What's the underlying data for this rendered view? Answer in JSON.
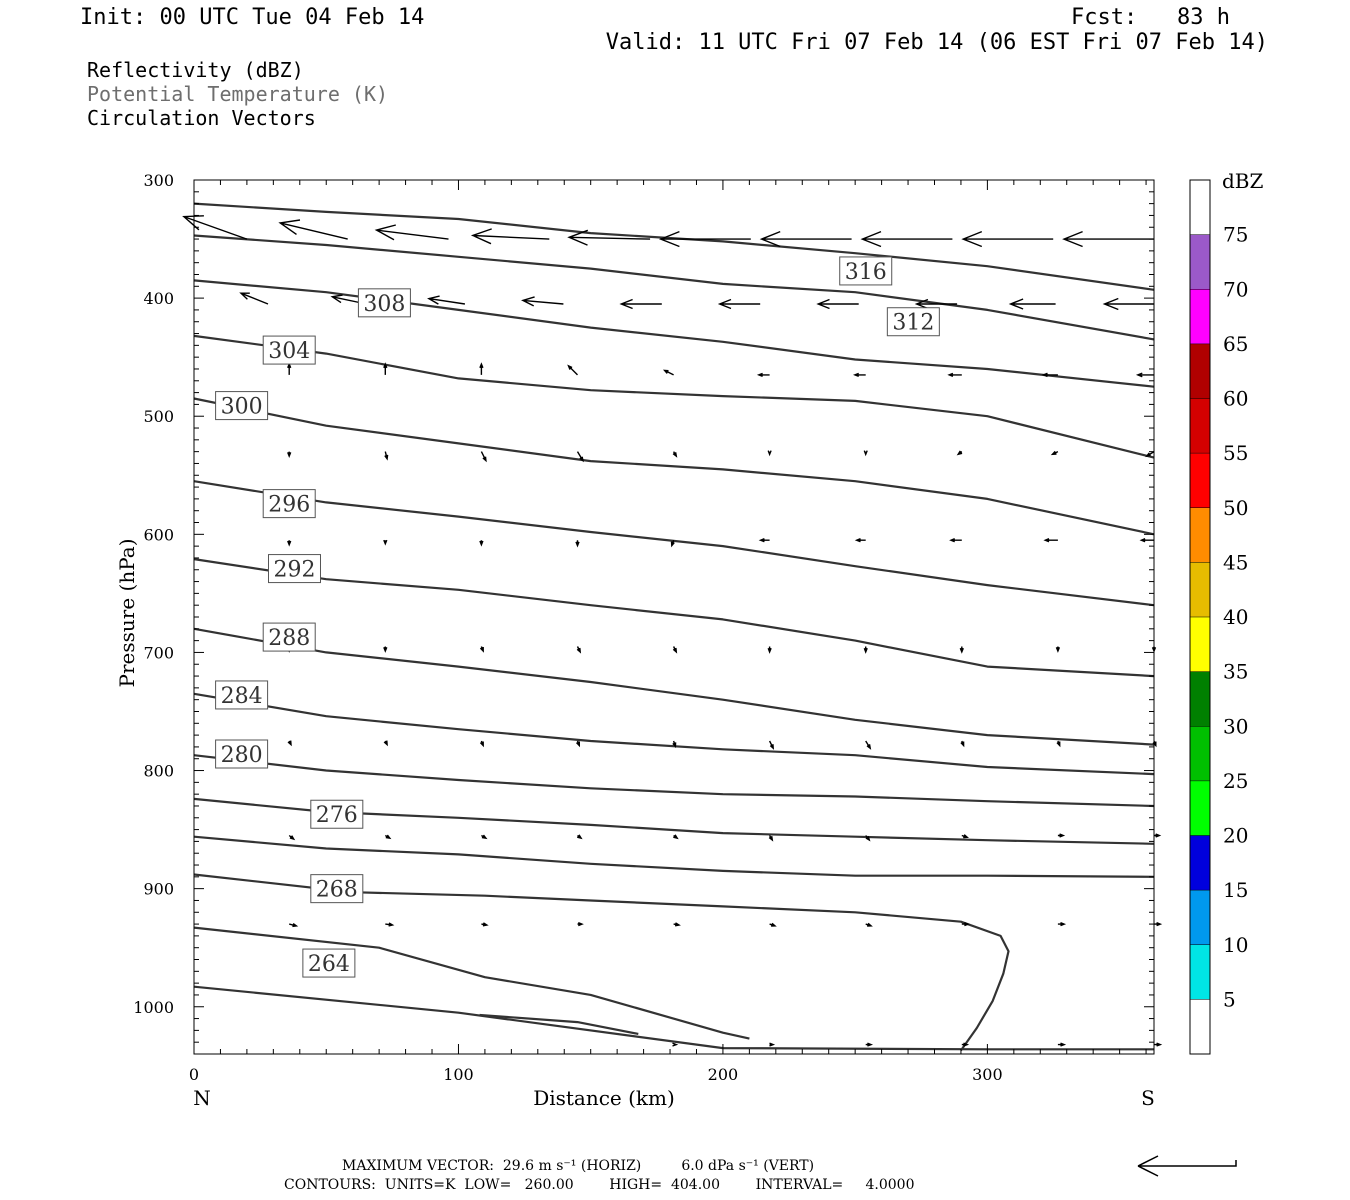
{
  "header": {
    "init": "Init: 00 UTC Tue 04 Feb 14",
    "fcst": "Fcst:   83 h",
    "valid": "Valid: 11 UTC Fri 07 Feb 14 (06 EST Fri 07 Feb 14)"
  },
  "fields": [
    "Reflectivity (dBZ)",
    "Potential Temperature (K)",
    "Circulation Vectors"
  ],
  "colors": {
    "contour": "#333333",
    "axis": "#000000",
    "field_gray": "#6e6e6e"
  },
  "chart_data": {
    "type": "line",
    "xlabel": "Distance (km)",
    "ylabel": "Pressure (hPa)",
    "x_end_labels": [
      "N",
      "S"
    ],
    "xlim": [
      0,
      363
    ],
    "ylim": [
      1040,
      300
    ],
    "x_ticks": [
      0,
      100,
      200,
      300
    ],
    "x_tick_labels": [
      "0",
      "100",
      "200",
      "300"
    ],
    "y_ticks": [
      300,
      400,
      500,
      600,
      700,
      800,
      900,
      1000
    ],
    "y_tick_labels": [
      "300",
      "400",
      "500",
      "600",
      "700",
      "800",
      "900",
      "1000"
    ],
    "series": [
      {
        "label": "264",
        "label_at": [
          51,
          963
        ],
        "x": [
          0,
          70,
          110,
          150,
          200,
          210
        ],
        "y": [
          933,
          950,
          975,
          990,
          1022,
          1027
        ]
      },
      {
        "label": "268",
        "label_at": [
          54,
          900
        ],
        "x": [
          0,
          60,
          110,
          150,
          200,
          250,
          290,
          305,
          308,
          306,
          302,
          296,
          290
        ],
        "y": [
          888,
          903,
          906,
          910,
          915,
          920,
          928,
          940,
          953,
          972,
          995,
          1018,
          1037
        ]
      },
      {
        "label": "",
        "label_at": null,
        "x": [
          0,
          50,
          100,
          150,
          200,
          250,
          300,
          363
        ],
        "y": [
          856,
          866,
          871,
          879,
          885,
          889,
          889,
          890
        ]
      },
      {
        "label": "276",
        "label_at": [
          54,
          837
        ],
        "x": [
          0,
          50,
          100,
          150,
          200,
          250,
          300,
          363
        ],
        "y": [
          824,
          835,
          840,
          846,
          853,
          856,
          859,
          862
        ]
      },
      {
        "label": "280",
        "label_at": [
          18,
          786
        ],
        "x": [
          0,
          50,
          100,
          150,
          200,
          250,
          300,
          363
        ],
        "y": [
          787,
          800,
          808,
          815,
          820,
          822,
          826,
          830
        ]
      },
      {
        "label": "284",
        "label_at": [
          18,
          736
        ],
        "x": [
          0,
          50,
          100,
          150,
          200,
          250,
          300,
          363
        ],
        "y": [
          735,
          754,
          765,
          775,
          782,
          787,
          797,
          803
        ]
      },
      {
        "label": "288",
        "label_at": [
          36,
          687
        ],
        "x": [
          0,
          50,
          100,
          150,
          200,
          250,
          300,
          363
        ],
        "y": [
          680,
          700,
          712,
          725,
          740,
          757,
          770,
          778
        ]
      },
      {
        "label": "292",
        "label_at": [
          38,
          629
        ],
        "x": [
          0,
          50,
          100,
          150,
          200,
          250,
          300,
          363
        ],
        "y": [
          621,
          638,
          647,
          660,
          672,
          690,
          712,
          720
        ]
      },
      {
        "label": "296",
        "label_at": [
          36,
          574
        ],
        "x": [
          0,
          50,
          100,
          150,
          200,
          250,
          300,
          363
        ],
        "y": [
          555,
          573,
          585,
          598,
          610,
          627,
          643,
          660
        ]
      },
      {
        "label": "300",
        "label_at": [
          18,
          491
        ],
        "x": [
          0,
          50,
          100,
          150,
          200,
          250,
          300,
          363
        ],
        "y": [
          485,
          508,
          523,
          538,
          545,
          555,
          570,
          600
        ]
      },
      {
        "label": "304",
        "label_at": [
          36,
          444
        ],
        "x": [
          0,
          50,
          100,
          150,
          200,
          250,
          300,
          363
        ],
        "y": [
          432,
          447,
          468,
          478,
          483,
          487,
          500,
          535
        ]
      },
      {
        "label": "308",
        "label_at": [
          72,
          404
        ],
        "x": [
          0,
          50,
          100,
          150,
          200,
          250,
          300,
          363
        ],
        "y": [
          385,
          395,
          410,
          425,
          437,
          452,
          460,
          475
        ]
      },
      {
        "label": "312",
        "label_at": [
          272,
          420
        ],
        "x": [
          0,
          50,
          100,
          150,
          200,
          250,
          300,
          363
        ],
        "y": [
          347,
          355,
          365,
          375,
          388,
          395,
          410,
          435
        ]
      },
      {
        "label": "316",
        "label_at": [
          254,
          377
        ],
        "x": [
          0,
          50,
          100,
          150,
          200,
          250,
          300,
          363
        ],
        "y": [
          320,
          327,
          333,
          345,
          352,
          362,
          373,
          393
        ]
      },
      {
        "label": "",
        "label_at": null,
        "x": [
          0,
          100,
          200,
          300,
          363
        ],
        "y": [
          983,
          1005,
          1035,
          1036,
          1036
        ]
      },
      {
        "label": "",
        "label_at": null,
        "x": [
          108,
          145,
          168
        ],
        "y": [
          1007,
          1013,
          1023
        ]
      }
    ],
    "vectors": [
      {
        "p": 350,
        "x0": 20,
        "x1": 363,
        "n": 10,
        "u": [
          -0.7,
          -0.75,
          -0.8,
          -0.85,
          -0.9,
          -1.0,
          -1.0,
          -1.0,
          -1.0,
          -1.0
        ],
        "w": [
          -0.25,
          -0.18,
          -0.1,
          -0.04,
          -0.02,
          0,
          0,
          0,
          0,
          0
        ]
      },
      {
        "p": 405,
        "x0": 28,
        "x1": 363,
        "n": 10,
        "u": [
          -0.3,
          -0.38,
          -0.4,
          -0.45,
          -0.45,
          -0.45,
          -0.45,
          -0.45,
          -0.5,
          -0.55
        ],
        "w": [
          -0.12,
          -0.08,
          -0.06,
          -0.04,
          0,
          0,
          0,
          0,
          0,
          0
        ]
      },
      {
        "p": 465,
        "x0": 36,
        "x1": 363,
        "n": 10,
        "u": [
          0.0,
          0.0,
          0.0,
          -0.1,
          -0.1,
          -0.12,
          -0.12,
          -0.14,
          -0.16,
          -0.18
        ],
        "w": [
          -0.12,
          -0.12,
          -0.12,
          -0.1,
          -0.05,
          0,
          0,
          0,
          0,
          0
        ]
      },
      {
        "p": 530,
        "x0": 36,
        "x1": 363,
        "n": 10,
        "u": [
          0,
          0.02,
          0.05,
          0.06,
          0.03,
          0,
          0,
          -0.04,
          -0.06,
          -0.08
        ],
        "w": [
          0.05,
          0.08,
          0.1,
          0.1,
          0.05,
          0.03,
          0.03,
          0.03,
          0.03,
          0.05
        ]
      },
      {
        "p": 605,
        "x0": 36,
        "x1": 363,
        "n": 10,
        "u": [
          0,
          0,
          0,
          0,
          -0.02,
          -0.1,
          -0.1,
          -0.12,
          -0.14,
          -0.14
        ],
        "w": [
          0.05,
          0.04,
          0.05,
          0.06,
          0.06,
          0,
          0,
          0,
          0,
          0
        ]
      },
      {
        "p": 695,
        "x0": 36,
        "x1": 363,
        "n": 10,
        "u": [
          0.0,
          0.0,
          0.02,
          0.03,
          0.03,
          0,
          0,
          0,
          0,
          0
        ],
        "w": [
          0.05,
          0.05,
          0.05,
          0.06,
          0.06,
          0.06,
          0.06,
          0.06,
          0.05,
          0.05
        ]
      },
      {
        "p": 775,
        "x0": 36,
        "x1": 363,
        "n": 10,
        "u": [
          0.02,
          0.02,
          0.02,
          0.02,
          0.02,
          0.04,
          0.05,
          0.02,
          0.02,
          0.02
        ],
        "w": [
          0.04,
          0.04,
          0.05,
          0.05,
          0.06,
          0.08,
          0.08,
          0.05,
          0.05,
          0.05
        ]
      },
      {
        "p": 855,
        "x0": 36,
        "x1": 363,
        "n": 10,
        "u": [
          0.05,
          0.05,
          0.05,
          0.04,
          0.04,
          0.03,
          0.04,
          0.06,
          0.06,
          0.06
        ],
        "w": [
          0.04,
          0.03,
          0.03,
          0.03,
          0.03,
          0.05,
          0.05,
          0.02,
          0,
          0
        ]
      },
      {
        "p": 930,
        "x0": 36,
        "x1": 363,
        "n": 10,
        "u": [
          0.08,
          0.08,
          0.06,
          0.05,
          0.06,
          0.06,
          0.06,
          0.07,
          0.07,
          0.07
        ],
        "w": [
          0.02,
          0.01,
          0.01,
          0,
          0.01,
          0.02,
          0.02,
          0,
          0,
          0
        ]
      },
      {
        "p": 1032,
        "x0": 36,
        "x1": 363,
        "n": 10,
        "u": [
          0,
          0,
          0,
          0,
          0.03,
          0.04,
          0.06,
          0.06,
          0.07,
          0.07
        ],
        "w": [
          0,
          0,
          0,
          0,
          0,
          0,
          0,
          0,
          0,
          0
        ]
      }
    ],
    "colorbar": {
      "unit": "dBZ",
      "levels": [
        "5",
        "10",
        "15",
        "20",
        "25",
        "30",
        "35",
        "40",
        "45",
        "50",
        "55",
        "60",
        "65",
        "70",
        "75"
      ],
      "colors": [
        "#ffffff",
        "#00e5e5",
        "#0099ee",
        "#0000dd",
        "#00ff00",
        "#00c000",
        "#008000",
        "#ffff00",
        "#e6bc00",
        "#ff8c00",
        "#ff0000",
        "#d40000",
        "#b00000",
        "#ff00ff",
        "#9b59c9",
        "#ffffff"
      ]
    }
  },
  "footer": {
    "line1": "MAXIMUM VECTOR:  29.6 m s⁻¹ (HORIZ)         6.0 dPa s⁻¹ (VERT)",
    "line2": "CONTOURS:  UNITS=K  LOW=   260.00        HIGH=  404.00        INTERVAL=     4.0000"
  }
}
